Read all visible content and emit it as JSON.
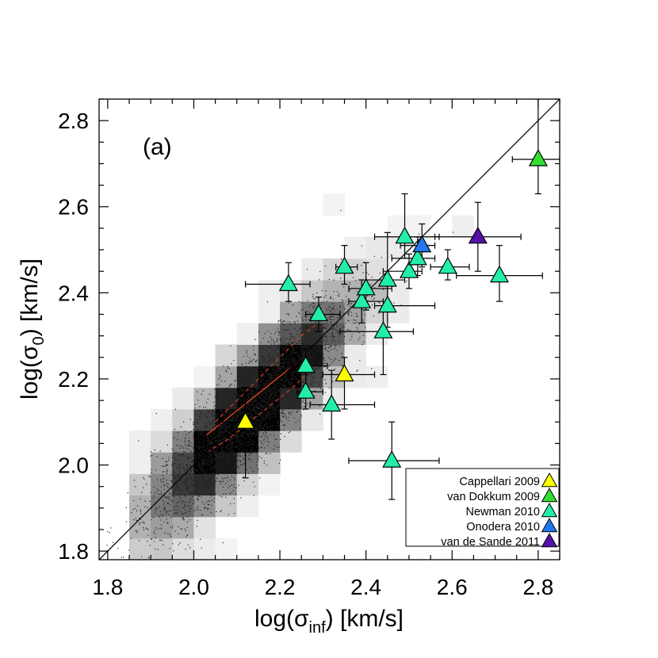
{
  "chart_data": {
    "type": "scatter",
    "panel_label": "(a)",
    "xlabel": {
      "prefix": "log(σ",
      "sub": "inf",
      "suffix": ") [km/s]"
    },
    "ylabel": {
      "prefix": "log(σ",
      "sub": "0",
      "suffix": ") [km/s]"
    },
    "xlim": [
      1.78,
      2.85
    ],
    "ylim": [
      1.78,
      2.85
    ],
    "x_ticks": [
      "1.8",
      "2.0",
      "2.2",
      "2.4",
      "2.6",
      "2.8"
    ],
    "y_ticks": [
      "1.8",
      "2.0",
      "2.2",
      "2.4",
      "2.6",
      "2.8"
    ],
    "one_to_one_line": true,
    "background_density": "grayscale 2D histogram of local galaxies with dots",
    "running_median": {
      "color": "#d04020",
      "median": [
        [
          2.03,
          2.07
        ],
        [
          2.08,
          2.11
        ],
        [
          2.13,
          2.15
        ],
        [
          2.18,
          2.19
        ],
        [
          2.23,
          2.23
        ],
        [
          2.27,
          2.27
        ]
      ],
      "upper": [
        [
          2.05,
          2.1
        ],
        [
          2.1,
          2.15
        ],
        [
          2.15,
          2.2
        ],
        [
          2.2,
          2.25
        ],
        [
          2.25,
          2.3
        ],
        [
          2.29,
          2.33
        ]
      ],
      "lower": [
        [
          2.03,
          2.03
        ],
        [
          2.08,
          2.06
        ],
        [
          2.13,
          2.1
        ],
        [
          2.18,
          2.14
        ],
        [
          2.23,
          2.18
        ],
        [
          2.27,
          2.22
        ]
      ]
    },
    "series": [
      {
        "name": "Cappellari 2009",
        "color": "#ffff00",
        "points": [
          {
            "x": 2.12,
            "y": 2.1,
            "xlo": 0.06,
            "xhi": 0.06,
            "ylo": 0.13,
            "yhi": 0.08
          },
          {
            "x": 2.35,
            "y": 2.21,
            "xlo": 0.05,
            "xhi": 0.07,
            "ylo": 0.08,
            "yhi": 0.04
          }
        ]
      },
      {
        "name": "van Dokkum 2009",
        "color": "#33dd33",
        "points": [
          {
            "x": 2.8,
            "y": 2.71,
            "xlo": 0.06,
            "xhi": 0.05,
            "ylo": 0.08,
            "yhi": 0.14
          }
        ]
      },
      {
        "name": "Newman 2010",
        "color": "#22eeaa",
        "points": [
          {
            "x": 2.22,
            "y": 2.42,
            "xlo": 0.1,
            "xhi": 0.05,
            "ylo": 0.04,
            "yhi": 0.05
          },
          {
            "x": 2.29,
            "y": 2.35,
            "xlo": 0.03,
            "xhi": 0.05,
            "ylo": 0.04,
            "yhi": 0.04
          },
          {
            "x": 2.26,
            "y": 2.23,
            "xlo": 0.03,
            "xhi": 0.05,
            "ylo": 0.05,
            "yhi": 0.04
          },
          {
            "x": 2.26,
            "y": 2.17,
            "xlo": 0.02,
            "xhi": 0.04,
            "ylo": 0.04,
            "yhi": 0.04
          },
          {
            "x": 2.32,
            "y": 2.14,
            "xlo": 0.05,
            "xhi": 0.1,
            "ylo": 0.08,
            "yhi": 0.08
          },
          {
            "x": 2.35,
            "y": 2.46,
            "xlo": 0.02,
            "xhi": 0.03,
            "ylo": 0.04,
            "yhi": 0.05
          },
          {
            "x": 2.39,
            "y": 2.38,
            "xlo": 0.03,
            "xhi": 0.05,
            "ylo": 0.05,
            "yhi": 0.05
          },
          {
            "x": 2.4,
            "y": 2.41,
            "xlo": 0.04,
            "xhi": 0.06,
            "ylo": 0.05,
            "yhi": 0.06
          },
          {
            "x": 2.45,
            "y": 2.43,
            "xlo": 0.05,
            "xhi": 0.04,
            "ylo": 0.06,
            "yhi": 0.11
          },
          {
            "x": 2.45,
            "y": 2.37,
            "xlo": 0.03,
            "xhi": 0.11,
            "ylo": 0.05,
            "yhi": 0.05
          },
          {
            "x": 2.44,
            "y": 2.31,
            "xlo": 0.1,
            "xhi": 0.07,
            "ylo": 0.1,
            "yhi": 0.05
          },
          {
            "x": 2.46,
            "y": 2.01,
            "xlo": 0.1,
            "xhi": 0.11,
            "ylo": 0.09,
            "yhi": 0.09
          },
          {
            "x": 2.49,
            "y": 2.53,
            "xlo": 0.07,
            "xhi": 0.08,
            "ylo": 0.05,
            "yhi": 0.1
          },
          {
            "x": 2.5,
            "y": 2.45,
            "xlo": 0.06,
            "xhi": 0.03,
            "ylo": 0.04,
            "yhi": 0.04
          },
          {
            "x": 2.52,
            "y": 2.48,
            "xlo": 0.06,
            "xhi": 0.04,
            "ylo": 0.04,
            "yhi": 0.05
          },
          {
            "x": 2.59,
            "y": 2.46,
            "xlo": 0.04,
            "xhi": 0.05,
            "ylo": 0.03,
            "yhi": 0.04
          },
          {
            "x": 2.71,
            "y": 2.44,
            "xlo": 0.1,
            "xhi": 0.1,
            "ylo": 0.06,
            "yhi": 0.07
          }
        ]
      },
      {
        "name": "Onodera 2010",
        "color": "#2277ee",
        "points": [
          {
            "x": 2.53,
            "y": 2.51,
            "xlo": 0.05,
            "xhi": 0.03,
            "ylo": 0.05,
            "yhi": 0.05
          }
        ]
      },
      {
        "name": "van de Sande 2011",
        "color": "#5511aa",
        "points": [
          {
            "x": 2.66,
            "y": 2.53,
            "xlo": 0.1,
            "xhi": 0.1,
            "ylo": 0.08,
            "yhi": 0.08
          }
        ]
      }
    ],
    "legend": {
      "position": "bottom-right"
    }
  }
}
